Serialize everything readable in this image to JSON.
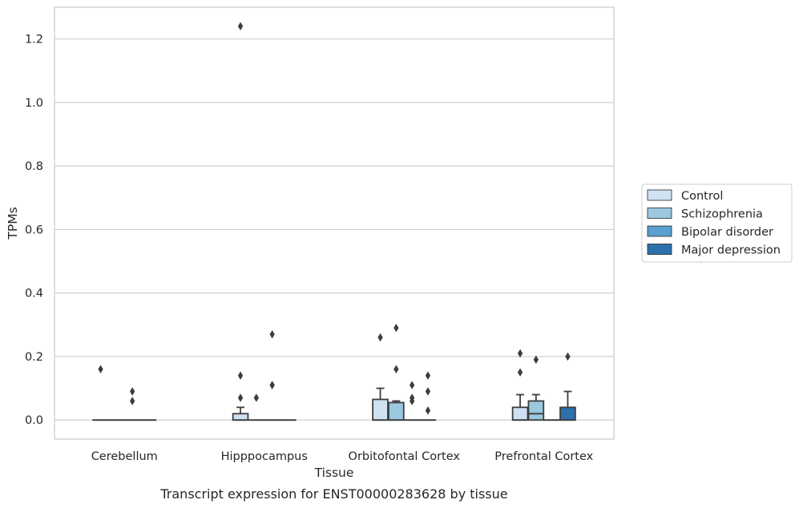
{
  "chart_data": {
    "type": "box",
    "caption": "Transcript expression for ENST00000283628 by tissue",
    "xlabel": "Tissue",
    "ylabel": "TPMs",
    "ylim": [
      -0.06,
      1.3
    ],
    "yticks": [
      0.0,
      0.2,
      0.4,
      0.6,
      0.8,
      1.0,
      1.2
    ],
    "ytick_labels": [
      "0.0",
      "0.2",
      "0.4",
      "0.6",
      "0.8",
      "1.0",
      "1.2"
    ],
    "categories": [
      "Cerebellum",
      "Hipppocampus",
      "Orbitofontal Cortex",
      "Prefrontal Cortex"
    ],
    "grid": "horizontal",
    "legend_position": "right",
    "series": [
      {
        "name": "Control",
        "color": "#cfe1f2",
        "boxes": [
          {
            "q1": 0,
            "median": 0,
            "q3": 0,
            "whisker_low": 0,
            "whisker_high": 0,
            "outliers": [
              0.16
            ]
          },
          {
            "q1": 0,
            "median": 0,
            "q3": 0.02,
            "whisker_low": 0,
            "whisker_high": 0.04,
            "outliers": [
              0.07,
              0.14,
              1.24
            ]
          },
          {
            "q1": 0,
            "median": 0,
            "q3": 0.065,
            "whisker_low": 0,
            "whisker_high": 0.1,
            "outliers": [
              0.26
            ]
          },
          {
            "q1": 0,
            "median": 0,
            "q3": 0.04,
            "whisker_low": 0,
            "whisker_high": 0.08,
            "outliers": [
              0.15,
              0.21
            ]
          }
        ]
      },
      {
        "name": "Schizophrenia",
        "color": "#9ac8e0",
        "boxes": [
          {
            "q1": 0,
            "median": 0,
            "q3": 0,
            "whisker_low": 0,
            "whisker_high": 0,
            "outliers": []
          },
          {
            "q1": 0,
            "median": 0,
            "q3": 0,
            "whisker_low": 0,
            "whisker_high": 0,
            "outliers": [
              0.07
            ]
          },
          {
            "q1": 0,
            "median": 0,
            "q3": 0.055,
            "whisker_low": 0,
            "whisker_high": 0.06,
            "outliers": [
              0.16,
              0.29
            ]
          },
          {
            "q1": 0,
            "median": 0.02,
            "q3": 0.06,
            "whisker_low": 0,
            "whisker_high": 0.08,
            "outliers": [
              0.19
            ]
          }
        ]
      },
      {
        "name": "Bipolar disorder",
        "color": "#5a9fcf",
        "boxes": [
          {
            "q1": 0,
            "median": 0,
            "q3": 0,
            "whisker_low": 0,
            "whisker_high": 0,
            "outliers": [
              0.06,
              0.09
            ]
          },
          {
            "q1": 0,
            "median": 0,
            "q3": 0,
            "whisker_low": 0,
            "whisker_high": 0,
            "outliers": [
              0.11,
              0.11,
              0.27
            ]
          },
          {
            "q1": 0,
            "median": 0,
            "q3": 0,
            "whisker_low": 0,
            "whisker_high": 0,
            "outliers": [
              0.06,
              0.07,
              0.11
            ]
          },
          {
            "q1": 0,
            "median": 0,
            "q3": 0,
            "whisker_low": 0,
            "whisker_high": 0,
            "outliers": []
          }
        ]
      },
      {
        "name": "Major depression",
        "color": "#2d6fad",
        "boxes": [
          {
            "q1": 0,
            "median": 0,
            "q3": 0,
            "whisker_low": 0,
            "whisker_high": 0,
            "outliers": []
          },
          {
            "q1": 0,
            "median": 0,
            "q3": 0,
            "whisker_low": 0,
            "whisker_high": 0,
            "outliers": []
          },
          {
            "q1": 0,
            "median": 0,
            "q3": 0,
            "whisker_low": 0,
            "whisker_high": 0,
            "outliers": [
              0.03,
              0.09,
              0.14
            ]
          },
          {
            "q1": 0,
            "median": 0,
            "q3": 0.04,
            "whisker_low": 0,
            "whisker_high": 0.09,
            "outliers": [
              0.2
            ]
          }
        ]
      }
    ]
  }
}
